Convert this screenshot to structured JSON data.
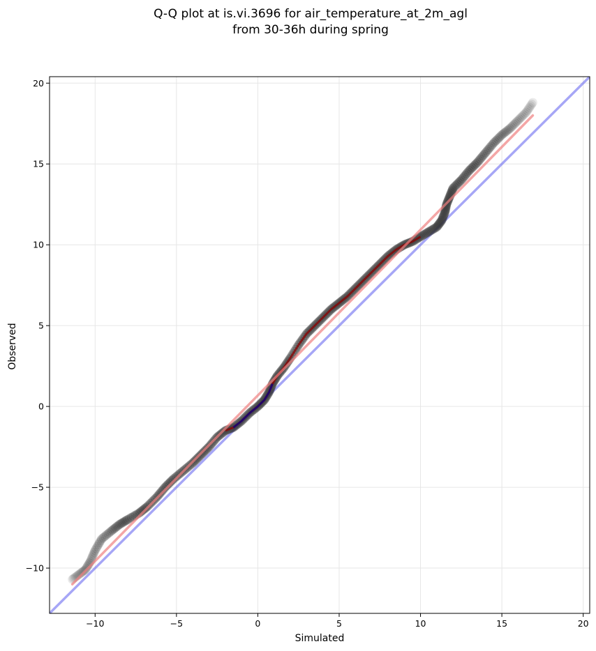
{
  "chart_data": {
    "type": "scatter",
    "title_lines": [
      "Q-Q plot at is.vi.3696 for air_temperature_at_2m_agl",
      "from 30-36h during spring"
    ],
    "xlabel": "Simulated",
    "ylabel": "Observed",
    "xlim": [
      -12.8,
      20.4
    ],
    "ylim": [
      -12.8,
      20.4
    ],
    "xticks": [
      -10,
      -5,
      0,
      5,
      10,
      15,
      20
    ],
    "yticks": [
      -10,
      -5,
      0,
      5,
      10,
      15,
      20
    ],
    "xtick_labels": [
      "−10",
      "−5",
      "0",
      "5",
      "10",
      "15",
      "20"
    ],
    "ytick_labels": [
      "−10",
      "−5",
      "0",
      "5",
      "10",
      "15",
      "20"
    ],
    "grid": true,
    "colors": {
      "points": "#333333",
      "reference_line": "#6b6bf0",
      "fit_line": "#f08080",
      "inner_trace": "#8b0000",
      "inner_trace_center": "#00008b",
      "grid": "#e6e6e6"
    },
    "reference_line": {
      "x": [
        -12.8,
        20.4
      ],
      "y": [
        -12.8,
        20.4
      ]
    },
    "fit_line": {
      "x": [
        -11.4,
        16.9
      ],
      "y": [
        -11.0,
        18.0
      ]
    },
    "quantile_curve": {
      "x": [
        -11.4,
        -11.0,
        -10.6,
        -10.3,
        -10.0,
        -9.6,
        -9.0,
        -8.5,
        -8.0,
        -7.3,
        -6.8,
        -6.2,
        -5.7,
        -5.2,
        -4.6,
        -4.0,
        -3.5,
        -3.0,
        -2.5,
        -2.0,
        -1.5,
        -1.0,
        -0.5,
        0.0,
        0.4,
        0.7,
        0.9,
        1.2,
        1.6,
        2.0,
        2.5,
        3.0,
        3.5,
        4.0,
        4.5,
        5.0,
        5.5,
        6.0,
        6.5,
        7.0,
        7.5,
        8.0,
        8.5,
        9.0,
        9.5,
        10.0,
        10.5,
        11.0,
        11.3,
        11.5,
        11.6,
        11.8,
        12.0,
        12.5,
        13.0,
        13.5,
        14.0,
        14.5,
        15.0,
        15.5,
        16.0,
        16.5,
        16.9
      ],
      "y": [
        -10.7,
        -10.4,
        -10.1,
        -9.6,
        -8.9,
        -8.2,
        -7.7,
        -7.3,
        -7.0,
        -6.6,
        -6.2,
        -5.6,
        -5.0,
        -4.5,
        -4.0,
        -3.5,
        -3.0,
        -2.5,
        -1.9,
        -1.5,
        -1.3,
        -0.9,
        -0.4,
        0.0,
        0.4,
        0.9,
        1.4,
        1.9,
        2.4,
        3.0,
        3.8,
        4.5,
        5.0,
        5.5,
        6.0,
        6.4,
        6.8,
        7.3,
        7.8,
        8.3,
        8.8,
        9.3,
        9.7,
        10.0,
        10.2,
        10.5,
        10.8,
        11.1,
        11.5,
        12.0,
        12.5,
        13.0,
        13.5,
        14.0,
        14.6,
        15.1,
        15.7,
        16.3,
        16.8,
        17.2,
        17.7,
        18.2,
        18.8
      ]
    }
  }
}
